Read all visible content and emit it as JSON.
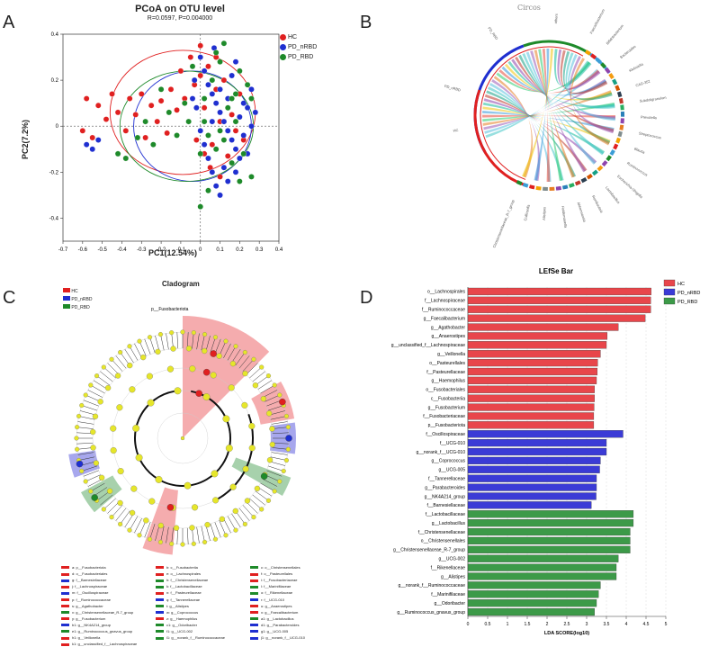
{
  "panels": {
    "a": "A",
    "b": "B",
    "c": "C",
    "d": "D"
  },
  "pcoa": {
    "title": "PCoA on OTU level",
    "subtitle": "R=0.0597, P=0.004000",
    "xlabel": "PC1(12.54%)",
    "ylabel": "PC2(7.2%)",
    "xticks": [
      "-0.7",
      "-0.6",
      "-0.5",
      "-0.4",
      "-0.3",
      "-0.2",
      "-0.1",
      "0",
      "0.1",
      "0.2",
      "0.3",
      "0.4"
    ],
    "yticks": [
      "0.4",
      "0.2",
      "0",
      "-0.2",
      "-0.4"
    ],
    "legend": [
      {
        "label": "HC",
        "color": "#e02020"
      },
      {
        "label": "PD_nRBD",
        "color": "#1f2fd0"
      },
      {
        "label": "PD_RBD",
        "color": "#1e8a2a"
      }
    ]
  },
  "circos": {
    "title": "Circos",
    "labels": [
      "PD_nRBD",
      "PD_RBD",
      "HC",
      "others",
      "Faecalibacterium",
      "Bifidobacterium",
      "Bacteroides",
      "Klebsiella",
      "CAG-352",
      "Subdoligranulum",
      "Prevotella",
      "Streptococcus",
      "Blautia",
      "Ruminococcus",
      "Escherichia-Shigella",
      "Lactobacillus",
      "Romboutsia",
      "Akkermansia",
      "Holdemanella",
      "Alistipes",
      "Collinsella",
      "Christensenellaceae_R-7_group"
    ]
  },
  "cladogram": {
    "title": "Cladogram",
    "top_label": "p__Fusobacteriota",
    "legend": [
      {
        "label": "HC",
        "color": "#e02020"
      },
      {
        "label": "PD_nRBD",
        "color": "#1f2fd0"
      },
      {
        "label": "PD_RBD",
        "color": "#1e8a2a"
      }
    ],
    "key": [
      {
        "text": "a: p__Fusobacteriota",
        "color": "#e02020"
      },
      {
        "text": "b: c__Fusobacteriia",
        "color": "#e02020"
      },
      {
        "text": "c: o__Christensenellales",
        "color": "#1e8a2a"
      },
      {
        "text": "d: o__Fusobacteriales",
        "color": "#e02020"
      },
      {
        "text": "e: o__Lachnospirales",
        "color": "#e02020"
      },
      {
        "text": "f: o__Pasteurellales",
        "color": "#e02020"
      },
      {
        "text": "g: f__Barnesiellaceae",
        "color": "#1f2fd0"
      },
      {
        "text": "h: f__Christensenellaceae",
        "color": "#1e8a2a"
      },
      {
        "text": "i: f__Fusobacteriaceae",
        "color": "#e02020"
      },
      {
        "text": "j: f__Lachnospiraceae",
        "color": "#e02020"
      },
      {
        "text": "k: f__Lactobacillaceae",
        "color": "#1e8a2a"
      },
      {
        "text": "l: f__Marinifilaceae",
        "color": "#1e8a2a"
      },
      {
        "text": "m: f__Oscillospiraceae",
        "color": "#1f2fd0"
      },
      {
        "text": "n: f__Pasteurellaceae",
        "color": "#e02020"
      },
      {
        "text": "o: f__Rikenellaceae",
        "color": "#1e8a2a"
      },
      {
        "text": "p: f__Ruminococcaceae",
        "color": "#e02020"
      },
      {
        "text": "q: f__Tannerellaceae",
        "color": "#1f2fd0"
      },
      {
        "text": "r: f__UCG-010",
        "color": "#1f2fd0"
      },
      {
        "text": "s: g__Agathobacter",
        "color": "#e02020"
      },
      {
        "text": "t: g__Alistipes",
        "color": "#1e8a2a"
      },
      {
        "text": "u: g__Anaerostipes",
        "color": "#e02020"
      },
      {
        "text": "v: g__Christensenellaceae_R-7_group",
        "color": "#1e8a2a"
      },
      {
        "text": "w: g__Coprococcus",
        "color": "#1f2fd0"
      },
      {
        "text": "x: g__Faecalibacterium",
        "color": "#e02020"
      },
      {
        "text": "y: g__Fusobacterium",
        "color": "#e02020"
      },
      {
        "text": "z: g__Haemophilus",
        "color": "#e02020"
      },
      {
        "text": "a1: g__Lactobacillus",
        "color": "#1e8a2a"
      },
      {
        "text": "b1: g__NK4A214_group",
        "color": "#1f2fd0"
      },
      {
        "text": "c1: g__Odoribacter",
        "color": "#1e8a2a"
      },
      {
        "text": "d1: g__Parabacteroides",
        "color": "#1f2fd0"
      },
      {
        "text": "e1: g__Ruminococcus_gnavus_group",
        "color": "#1e8a2a"
      },
      {
        "text": "f1: g__UCG-002",
        "color": "#1e8a2a"
      },
      {
        "text": "g1: g__UCG-005",
        "color": "#1f2fd0"
      },
      {
        "text": "h1: g__Veillonella",
        "color": "#e02020"
      },
      {
        "text": "i1: g__norank_f__Ruminococcaceae",
        "color": "#1e8a2a"
      },
      {
        "text": "j1: g__norank_f__UCG-010",
        "color": "#1f2fd0"
      },
      {
        "text": "k1: g__unclassified_f__Lachnospiraceae",
        "color": "#e02020"
      }
    ]
  },
  "chart_data": [
    {
      "type": "scatter",
      "title": "PCoA on OTU level",
      "subtitle": "R=0.0597, P=0.004000",
      "xlabel": "PC1(12.54%)",
      "ylabel": "PC2(7.2%)",
      "xlim": [
        -0.7,
        0.4
      ],
      "ylim": [
        -0.5,
        0.4
      ],
      "series": [
        {
          "name": "HC",
          "color": "#e02020",
          "points": [
            [
              -0.58,
              0.12
            ],
            [
              -0.52,
              0.09
            ],
            [
              -0.48,
              0.03
            ],
            [
              -0.45,
              0.14
            ],
            [
              -0.42,
              0.06
            ],
            [
              -0.38,
              -0.02
            ],
            [
              -0.36,
              0.12
            ],
            [
              -0.33,
              0.05
            ],
            [
              -0.3,
              0.14
            ],
            [
              -0.28,
              -0.05
            ],
            [
              -0.25,
              0.09
            ],
            [
              -0.22,
              0.02
            ],
            [
              -0.2,
              0.11
            ],
            [
              -0.17,
              -0.03
            ],
            [
              -0.15,
              0.16
            ],
            [
              -0.12,
              0.07
            ],
            [
              -0.1,
              0.24
            ],
            [
              -0.08,
              0.12
            ],
            [
              -0.05,
              0.3
            ],
            [
              -0.03,
              0.18
            ],
            [
              0.0,
              0.22
            ],
            [
              0.02,
              0.08
            ],
            [
              0.04,
              0.26
            ],
            [
              0.06,
              -0.08
            ],
            [
              0.08,
              0.16
            ],
            [
              0.1,
              0.02
            ],
            [
              0.12,
              0.2
            ],
            [
              0.14,
              -0.13
            ],
            [
              0.16,
              0.05
            ],
            [
              0.18,
              -0.02
            ],
            [
              0.05,
              -0.18
            ],
            [
              0.1,
              -0.22
            ],
            [
              0.02,
              -0.12
            ],
            [
              -0.02,
              -0.06
            ],
            [
              0.2,
              0.14
            ],
            [
              0.22,
              -0.06
            ],
            [
              0.0,
              0.35
            ],
            [
              -0.6,
              -0.02
            ],
            [
              -0.55,
              -0.05
            ],
            [
              0.08,
              0.3
            ]
          ]
        },
        {
          "name": "PD_nRBD",
          "color": "#1f2fd0",
          "points": [
            [
              -0.58,
              -0.08
            ],
            [
              -0.55,
              -0.1
            ],
            [
              -0.52,
              -0.06
            ],
            [
              0.0,
              0.3
            ],
            [
              0.02,
              0.24
            ],
            [
              0.04,
              0.18
            ],
            [
              0.06,
              0.14
            ],
            [
              0.08,
              0.1
            ],
            [
              0.1,
              0.06
            ],
            [
              0.12,
              0.02
            ],
            [
              0.14,
              -0.02
            ],
            [
              0.16,
              -0.06
            ],
            [
              0.18,
              -0.1
            ],
            [
              0.2,
              -0.14
            ],
            [
              0.22,
              -0.04
            ],
            [
              0.24,
              0.08
            ],
            [
              0.26,
              0.16
            ],
            [
              0.0,
              -0.02
            ],
            [
              0.02,
              -0.08
            ],
            [
              0.04,
              -0.14
            ],
            [
              0.06,
              -0.2
            ],
            [
              0.08,
              -0.26
            ],
            [
              0.1,
              -0.3
            ],
            [
              0.12,
              -0.18
            ],
            [
              0.14,
              0.12
            ],
            [
              0.16,
              0.22
            ],
            [
              0.18,
              0.28
            ],
            [
              0.2,
              0.04
            ],
            [
              -0.02,
              0.08
            ],
            [
              -0.04,
              0.12
            ],
            [
              0.06,
              0.02
            ],
            [
              0.1,
              0.16
            ],
            [
              0.14,
              -0.24
            ],
            [
              0.18,
              -0.2
            ],
            [
              0.22,
              0.1
            ],
            [
              0.24,
              -0.12
            ],
            [
              0.26,
              0.0
            ],
            [
              0.28,
              0.06
            ],
            [
              -0.03,
              0.2
            ],
            [
              0.07,
              0.34
            ]
          ]
        },
        {
          "name": "PD_RBD",
          "color": "#1e8a2a",
          "points": [
            [
              -0.42,
              -0.12
            ],
            [
              -0.38,
              -0.14
            ],
            [
              -0.32,
              -0.05
            ],
            [
              -0.28,
              0.02
            ],
            [
              -0.24,
              -0.08
            ],
            [
              -0.2,
              0.16
            ],
            [
              -0.16,
              0.06
            ],
            [
              -0.12,
              -0.04
            ],
            [
              -0.08,
              0.1
            ],
            [
              -0.04,
              0.26
            ],
            [
              0.0,
              -0.12
            ],
            [
              0.02,
              0.12
            ],
            [
              0.04,
              -0.04
            ],
            [
              0.06,
              0.2
            ],
            [
              0.08,
              -0.1
            ],
            [
              0.1,
              0.28
            ],
            [
              0.12,
              -0.06
            ],
            [
              0.14,
              0.08
            ],
            [
              0.16,
              -0.16
            ],
            [
              0.18,
              0.02
            ],
            [
              0.2,
              0.24
            ],
            [
              0.22,
              -0.12
            ],
            [
              0.24,
              0.18
            ],
            [
              0.26,
              -0.22
            ],
            [
              0.0,
              -0.35
            ],
            [
              0.04,
              -0.28
            ],
            [
              0.08,
              0.32
            ],
            [
              0.12,
              0.36
            ],
            [
              0.16,
              0.12
            ],
            [
              0.2,
              -0.24
            ],
            [
              -0.06,
              0.02
            ],
            [
              0.02,
              0.02
            ],
            [
              0.1,
              -0.02
            ],
            [
              0.18,
              0.14
            ],
            [
              0.26,
              0.12
            ]
          ]
        }
      ],
      "ellipses": [
        {
          "name": "HC",
          "center": [
            -0.09,
            0.06
          ],
          "radii": [
            0.37,
            0.27
          ],
          "angle": 0
        },
        {
          "name": "PD_nRBD",
          "center": [
            -0.04,
            0.0
          ],
          "radii": [
            0.3,
            0.24
          ],
          "angle": 0
        },
        {
          "name": "PD_RBD",
          "center": [
            -0.07,
            0.0
          ],
          "radii": [
            0.34,
            0.24
          ],
          "angle": 0
        }
      ]
    },
    {
      "type": "bar",
      "title": "LEfSe Bar",
      "xlabel": "LDA SCORE(log10)",
      "xlim": [
        0,
        5
      ],
      "xticks": [
        "0",
        "0.5",
        "1",
        "1.5",
        "2",
        "2.5",
        "3",
        "3.5",
        "4",
        "4.5",
        "5"
      ],
      "legend": [
        {
          "label": "HC",
          "color": "#e8464b"
        },
        {
          "label": "PD_nRBD",
          "color": "#3b3bd6"
        },
        {
          "label": "PD_RBD",
          "color": "#3c9a48"
        }
      ],
      "categories": [
        "o__Lachnospirales",
        "f__Lachnospiraceae",
        "f__Ruminococcaceae",
        "g__Faecalibacterium",
        "g__Agathobacter",
        "g__Anaerostipes",
        "g__unclassified_f__Lachnospiraceae",
        "g__Veillonella",
        "o__Pasteurellales",
        "f__Pasteurellaceae",
        "g__Haemophilus",
        "o__Fusobacteriales",
        "c__Fusobacteriia",
        "g__Fusobacterium",
        "f__Fusobacteriaceae",
        "p__Fusobacteriota",
        "f__Oscillospiraceae",
        "f__UCG-010",
        "g__norank_f__UCG-010",
        "g__Coprococcus",
        "g__UCG-005",
        "f__Tannerellaceae",
        "g__Parabacteroides",
        "g__NK4A214_group",
        "f__Barnesiellaceae",
        "f__Lactobacillaceae",
        "g__Lactobacillus",
        "f__Christensenellaceae",
        "o__Christensenellales",
        "g__Christensenellaceae_R-7_group",
        "g__UCG-002",
        "f__Rikenellaceae",
        "g__Alistipes",
        "g__norank_f__Ruminococcaceae",
        "f__Marinifilaceae",
        "g__Odoribacter",
        "g__Ruminococcus_gnavus_group"
      ],
      "values": [
        4.63,
        4.62,
        4.62,
        4.48,
        3.8,
        3.52,
        3.5,
        3.35,
        3.28,
        3.27,
        3.25,
        3.2,
        3.2,
        3.19,
        3.18,
        3.18,
        3.92,
        3.5,
        3.5,
        3.35,
        3.33,
        3.25,
        3.25,
        3.24,
        3.12,
        4.18,
        4.18,
        4.1,
        4.1,
        4.1,
        3.8,
        3.75,
        3.75,
        3.35,
        3.3,
        3.25,
        3.2
      ],
      "groups": [
        "HC",
        "HC",
        "HC",
        "HC",
        "HC",
        "HC",
        "HC",
        "HC",
        "HC",
        "HC",
        "HC",
        "HC",
        "HC",
        "HC",
        "HC",
        "HC",
        "PD_nRBD",
        "PD_nRBD",
        "PD_nRBD",
        "PD_nRBD",
        "PD_nRBD",
        "PD_nRBD",
        "PD_nRBD",
        "PD_nRBD",
        "PD_nRBD",
        "PD_RBD",
        "PD_RBD",
        "PD_RBD",
        "PD_RBD",
        "PD_RBD",
        "PD_RBD",
        "PD_RBD",
        "PD_RBD",
        "PD_RBD",
        "PD_RBD",
        "PD_RBD",
        "PD_RBD"
      ]
    }
  ]
}
